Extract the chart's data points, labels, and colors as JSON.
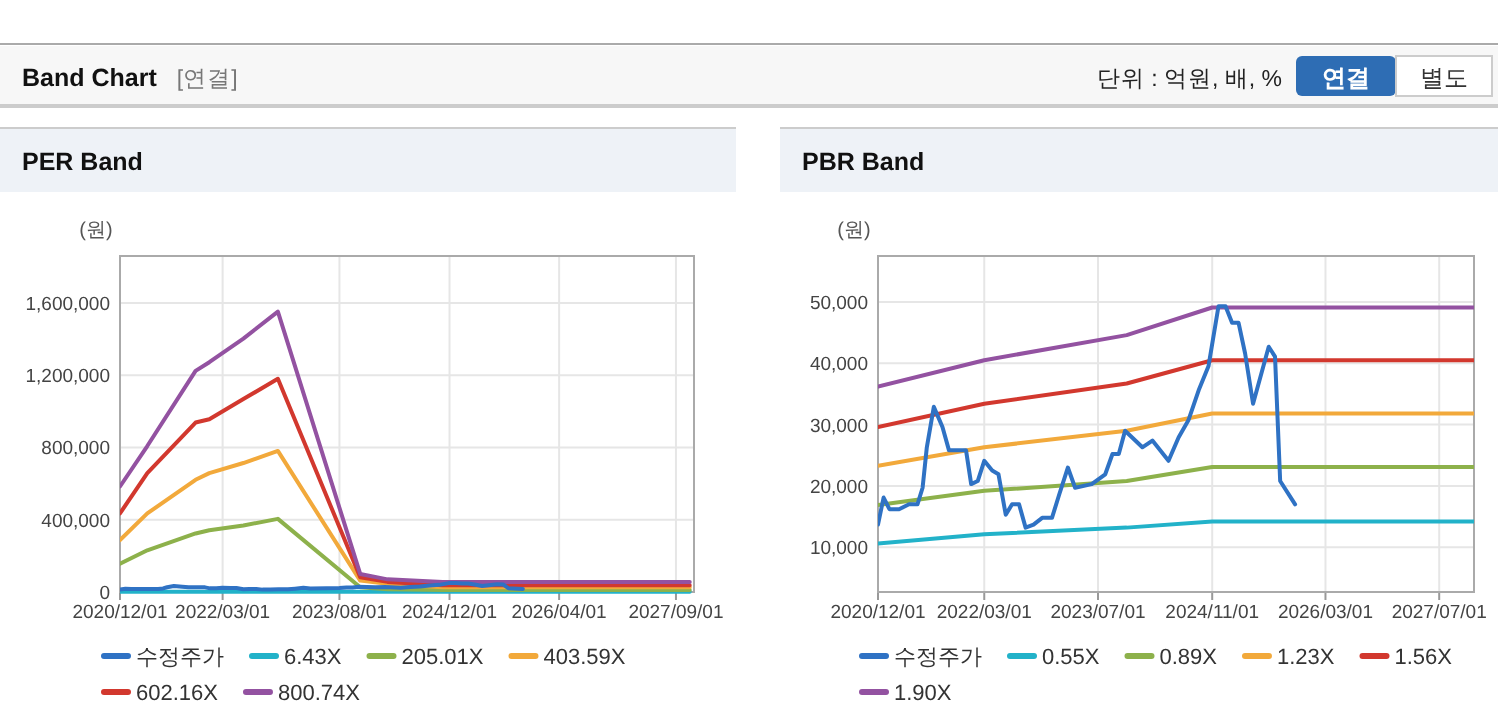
{
  "chart_data": [
    {
      "type": "other",
      "title": "Band Chart",
      "annotations": [
        "[연결]",
        "단위 : 억원, 배, %",
        "연결",
        "별도"
      ]
    },
    {
      "type": "line",
      "title": "PER Band",
      "ylabel": "(원)",
      "legend": "bottom",
      "grid": true,
      "x": [
        "2020-12-01",
        "2021-04-01",
        "2021-11-01",
        "2022-01-01",
        "2022-06-01",
        "2022-11-01",
        "2023-11-01",
        "2024-03-01",
        "2024-11-01",
        "2027-11-01"
      ],
      "xlim": [
        "2020-12-01",
        "2027-11-20"
      ],
      "xticks": [
        {
          "value": "2020-12-01",
          "label": "2020/12/01"
        },
        {
          "value": "2022-03-01",
          "label": "2022/03/01"
        },
        {
          "value": "2023-08-01",
          "label": "2023/08/01"
        },
        {
          "value": "2024-12-01",
          "label": "2024/12/01"
        },
        {
          "value": "2026-04-01",
          "label": "2026/04/01"
        },
        {
          "value": "2027-09-01",
          "label": "2027/09/01"
        }
      ],
      "ylim": [
        0,
        1860000
      ],
      "yticks": [
        0,
        {
          "value": 400000,
          "label": "400,000"
        },
        {
          "value": 800000,
          "label": "800,000"
        },
        {
          "value": 1200000,
          "label": "1,200,000"
        },
        {
          "value": 1600000,
          "label": "1,600,000"
        }
      ],
      "series": [
        {
          "name": "수정주가",
          "color": "#2f72c4",
          "x": [
            "2020-12-01",
            "2020-12-25",
            "2021-01-19",
            "2021-03-01",
            "2021-04-13",
            "2021-05-19",
            "2021-06-10",
            "2021-06-28",
            "2021-07-28",
            "2021-09-03",
            "2021-10-01",
            "2021-12-13",
            "2022-01-04",
            "2022-02-01",
            "2022-03-01",
            "2022-04-04",
            "2022-05-01",
            "2022-06-01",
            "2022-06-28",
            "2022-07-28",
            "2022-08-25",
            "2022-09-28",
            "2022-11-04",
            "2022-12-16",
            "2023-01-16",
            "2023-02-22",
            "2023-03-25",
            "2023-06-04",
            "2023-08-01",
            "2023-09-01",
            "2023-09-28",
            "2023-10-25",
            "2024-01-07",
            "2024-02-19",
            "2024-04-28",
            "2024-06-10",
            "2024-07-22",
            "2024-09-04",
            "2024-10-16",
            "2024-11-28",
            "2024-12-28",
            "2025-01-25",
            "2025-02-22",
            "2025-03-22",
            "2025-04-25",
            "2025-07-01",
            "2025-07-28",
            "2025-08-19",
            "2025-10-22"
          ],
          "values": [
            13700,
            18100,
            16200,
            16200,
            17000,
            17000,
            19700,
            26300,
            32900,
            29600,
            25800,
            25800,
            20300,
            20800,
            24100,
            22500,
            21900,
            15300,
            17000,
            17000,
            13200,
            13700,
            14800,
            14800,
            18600,
            23000,
            19700,
            20300,
            21900,
            25200,
            25200,
            29000,
            26300,
            27400,
            24100,
            27900,
            30700,
            35600,
            39500,
            49300,
            49300,
            46600,
            46600,
            41600,
            33400,
            42700,
            41100,
            20800,
            17000
          ]
        },
        {
          "name": "6.43X",
          "color": "#22b2c9",
          "values": [
            1000,
            1000,
            1000,
            1000,
            1000,
            1000,
            1000,
            1000,
            1000,
            1000
          ]
        },
        {
          "name": "205.01X",
          "color": "#8db14b",
          "values": [
            156000,
            231000,
            324000,
            342000,
            368000,
            405000,
            26000,
            15000,
            11000,
            11000
          ]
        },
        {
          "name": "403.59X",
          "color": "#f2a93b",
          "values": [
            287000,
            435000,
            621000,
            658000,
            714000,
            781000,
            63000,
            45000,
            26000,
            26000
          ]
        },
        {
          "name": "602.16X",
          "color": "#d2382e",
          "values": [
            435000,
            658000,
            938000,
            956000,
            1068000,
            1180000,
            82000,
            56000,
            37000,
            37000
          ]
        },
        {
          "name": "800.74X",
          "color": "#9352a1",
          "values": [
            584000,
            808000,
            1224000,
            1272000,
            1403000,
            1552000,
            100000,
            70000,
            56000,
            56000
          ]
        }
      ]
    },
    {
      "type": "line",
      "title": "PBR Band",
      "ylabel": "(원)",
      "legend": "bottom",
      "grid": true,
      "x": [
        "2020-12-01",
        "2022-03-01",
        "2023-11-01",
        "2024-11-01",
        "2027-11-27"
      ],
      "xlim": [
        "2020-12-01",
        "2027-11-27"
      ],
      "xticks": [
        {
          "value": "2020-12-01",
          "label": "2020/12/01"
        },
        {
          "value": "2022-03-01",
          "label": "2022/03/01"
        },
        {
          "value": "2023-07-01",
          "label": "2023/07/01"
        },
        {
          "value": "2024-11-01",
          "label": "2024/11/01"
        },
        {
          "value": "2026-03-01",
          "label": "2026/03/01"
        },
        {
          "value": "2027-07-01",
          "label": "2027/07/01"
        }
      ],
      "ylim": [
        2700,
        57500
      ],
      "yticks": [
        {
          "value": 10000,
          "label": "10,000"
        },
        {
          "value": 20000,
          "label": "20,000"
        },
        {
          "value": 30000,
          "label": "30,000"
        },
        {
          "value": 40000,
          "label": "40,000"
        },
        {
          "value": 50000,
          "label": "50,000"
        }
      ],
      "series": [
        {
          "name": "수정주가",
          "color": "#2f72c4",
          "x": [
            "2020-12-01",
            "2020-12-25",
            "2021-01-19",
            "2021-03-01",
            "2021-04-13",
            "2021-05-19",
            "2021-06-10",
            "2021-06-28",
            "2021-07-28",
            "2021-09-03",
            "2021-10-01",
            "2021-12-13",
            "2022-01-04",
            "2022-02-01",
            "2022-03-01",
            "2022-04-04",
            "2022-05-01",
            "2022-06-01",
            "2022-06-28",
            "2022-07-28",
            "2022-08-25",
            "2022-09-28",
            "2022-11-04",
            "2022-12-16",
            "2023-01-16",
            "2023-02-22",
            "2023-03-25",
            "2023-06-04",
            "2023-08-01",
            "2023-09-01",
            "2023-09-28",
            "2023-10-25",
            "2024-01-07",
            "2024-02-19",
            "2024-04-28",
            "2024-06-10",
            "2024-07-22",
            "2024-09-04",
            "2024-10-16",
            "2024-11-28",
            "2024-12-28",
            "2025-01-25",
            "2025-02-22",
            "2025-03-22",
            "2025-04-25",
            "2025-07-01",
            "2025-07-28",
            "2025-08-19",
            "2025-10-22"
          ],
          "values": [
            13700,
            18100,
            16200,
            16200,
            17000,
            17000,
            19700,
            26300,
            32900,
            29600,
            25800,
            25800,
            20300,
            20800,
            24100,
            22500,
            21900,
            15300,
            17000,
            17000,
            13200,
            13700,
            14800,
            14800,
            18600,
            23000,
            19700,
            20300,
            21900,
            25200,
            25200,
            29000,
            26300,
            27400,
            24100,
            27900,
            30700,
            35600,
            39500,
            49300,
            49300,
            46600,
            46600,
            41600,
            33400,
            42700,
            41100,
            20800,
            17000
          ]
        },
        {
          "name": "0.55X",
          "color": "#22b2c9",
          "values": [
            10600,
            12100,
            13200,
            14200,
            14200
          ]
        },
        {
          "name": "0.89X",
          "color": "#8db14b",
          "values": [
            16900,
            19200,
            20800,
            23100,
            23100
          ]
        },
        {
          "name": "1.23X",
          "color": "#f2a93b",
          "values": [
            23300,
            26300,
            29000,
            31800,
            31800
          ]
        },
        {
          "name": "1.56X",
          "color": "#d2382e",
          "values": [
            29600,
            33400,
            36700,
            40500,
            40500
          ]
        },
        {
          "name": "1.90X",
          "color": "#9352a1",
          "values": [
            36200,
            40500,
            44600,
            49100,
            49100
          ]
        }
      ]
    }
  ]
}
